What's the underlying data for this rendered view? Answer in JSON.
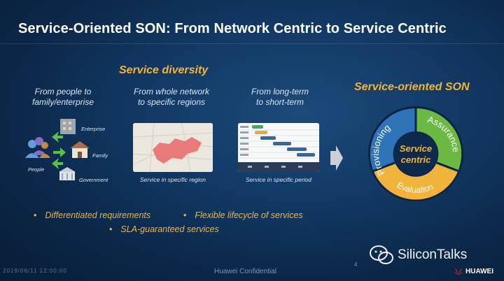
{
  "slide": {
    "title": "Service-Oriented SON: From Network Centric to Service Centric",
    "service_diversity": {
      "title": "Service diversity",
      "columns": [
        {
          "heading_line1": "From people to",
          "heading_line2": "family/enterprise"
        },
        {
          "heading_line1": "From whole network",
          "heading_line2": "to specific regions"
        },
        {
          "heading_line1": "From long-term",
          "heading_line2": "to short-term"
        }
      ],
      "people_labels": {
        "enterprise": "Enterprise",
        "family": "Family",
        "people": "People",
        "government": "Government"
      },
      "captions": {
        "region": "Service in specific region",
        "period": "Service in specific period"
      }
    },
    "service_oriented_son": {
      "title": "Service-oriented SON",
      "center_line1": "Service",
      "center_line2": "centric",
      "segments": [
        {
          "label": "Provisioning",
          "color": "#2f74b8"
        },
        {
          "label": "Assurance",
          "color": "#6bb944"
        },
        {
          "label": "Evaluation",
          "color": "#f0b43c"
        }
      ]
    },
    "bullets": [
      "Differentiated requirements",
      "Flexible lifecycle of services",
      "SLA-guaranteed services"
    ],
    "footer": {
      "left": "2019/06/11 12:00:00",
      "confidential": "Huawei Confidential",
      "page": "4"
    },
    "watermark": "SiliconTalks",
    "logo_text": "HUAWEI",
    "colors": {
      "accent": "#f3b43a",
      "background": "#123a66"
    }
  }
}
